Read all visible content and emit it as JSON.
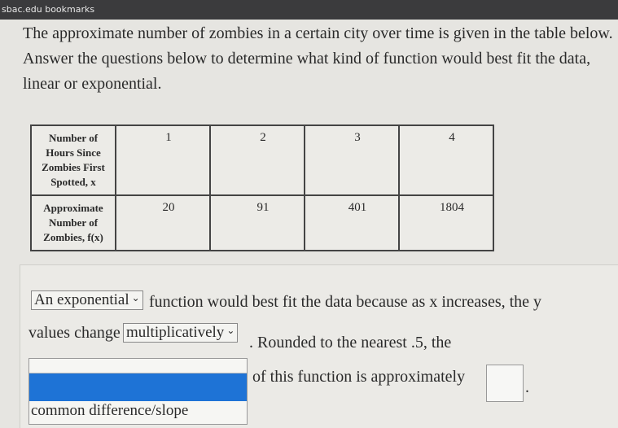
{
  "browser": {
    "bookmarks": "sbac.edu bookmarks"
  },
  "question": {
    "prompt": "The approximate number of zombies in a certain city over time is given in the table below. Answer the questions below to determine what kind of function would best fit the data, linear or exponential."
  },
  "table": {
    "rows": [
      [
        "Number of Hours Since Zombies First Spotted, x",
        1,
        2,
        3,
        4
      ],
      [
        "Approximate Number of Zombies, f(x)",
        20,
        91,
        401,
        1804
      ]
    ]
  },
  "answer": {
    "dropdown1": "An exponential",
    "text1": "function would best fit the data because as x increases, the y",
    "text2": "values change",
    "dropdown2": "multiplicatively",
    "text3": ". Rounded to the nearest .5, the",
    "text4": "of this function is approximately",
    "text5": ".",
    "options": [
      "common difference/slope"
    ]
  }
}
